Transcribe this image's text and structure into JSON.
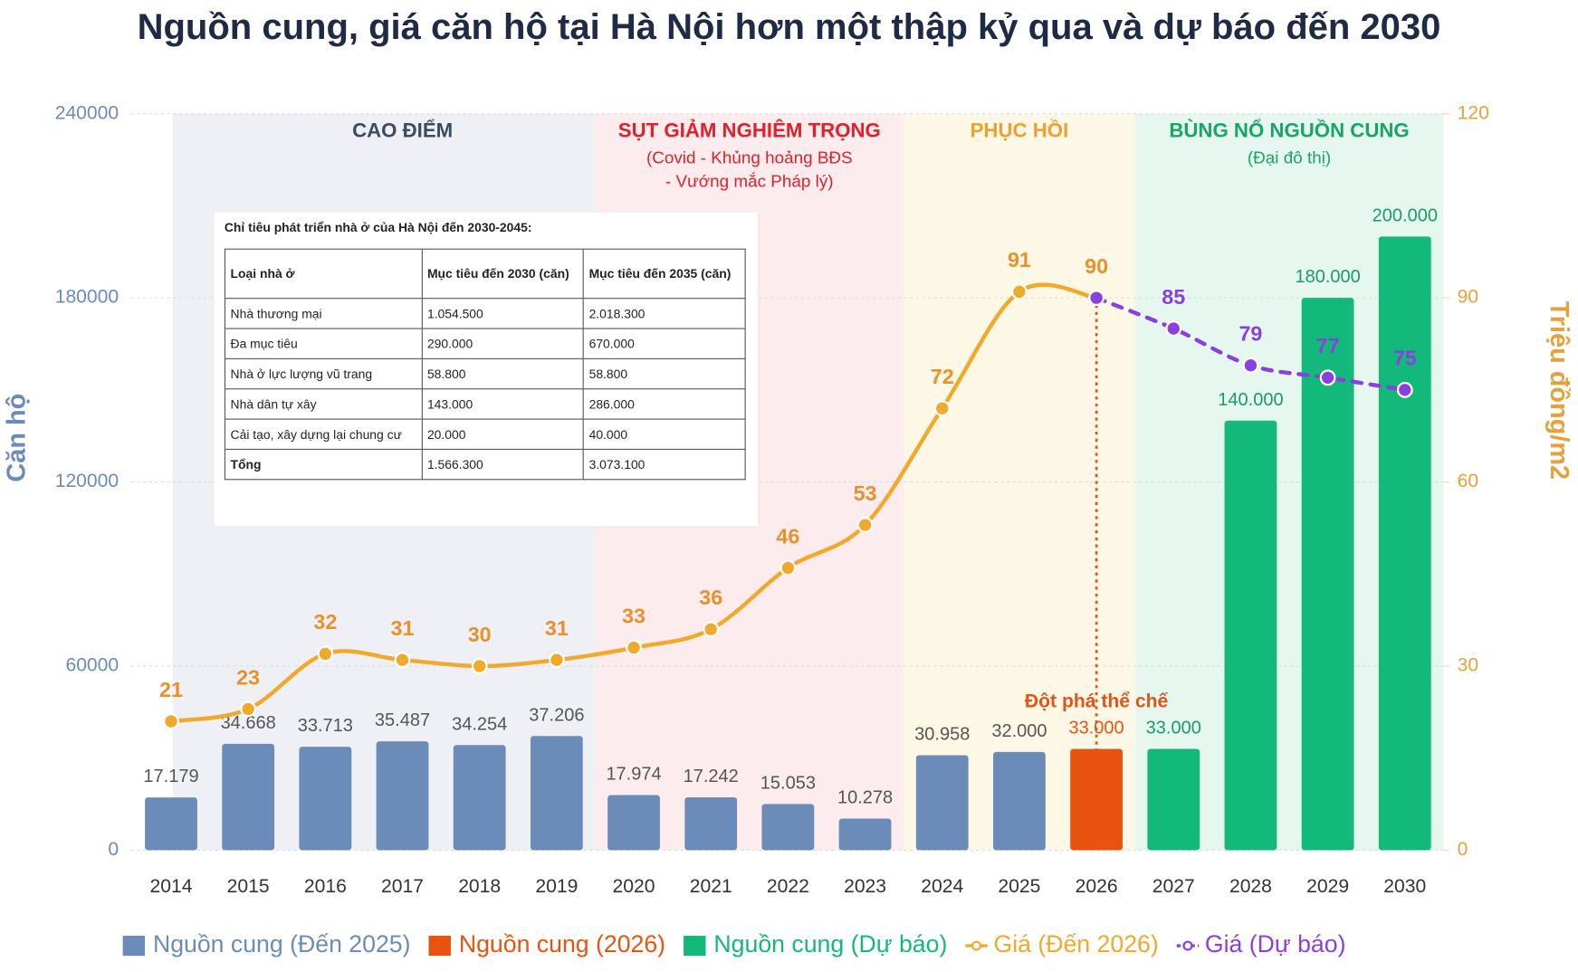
{
  "chart_data": {
    "type": "bar",
    "title": "Nguồn cung, giá căn hộ tại Hà Nội hơn một thập kỷ qua và dự báo đến 2030",
    "y_label": "Căn hộ",
    "y2_label": "Triệu đồng/m2",
    "categories": [
      "2014",
      "2015",
      "2016",
      "2017",
      "2018",
      "2019",
      "2020",
      "2021",
      "2022",
      "2023",
      "2024",
      "2025",
      "2026",
      "2027",
      "2028",
      "2029",
      "2030"
    ],
    "ylim": [
      0,
      240000
    ],
    "yticks": [
      0,
      60000,
      120000,
      180000,
      240000
    ],
    "y2lim": [
      0,
      120
    ],
    "y2ticks": [
      0,
      30,
      60,
      90,
      120
    ],
    "grid": true,
    "legend": "bottom",
    "phases": [
      {
        "title": "CAO ĐIỂM",
        "color": "#3d4a63",
        "background": "#eef0f5"
      },
      {
        "title": "SỤT GIẢM NGHIÊM TRỌNG",
        "note": [
          "(Covid - Khủng hoảng BĐS",
          "- Vướng mắc Pháp lý)"
        ],
        "color": "#e0202a",
        "background": "#fdeced"
      },
      {
        "title": "PHỤC HỒI",
        "color": "#eba032",
        "background": "#fdf8e6"
      },
      {
        "title": "BÙNG NỔ NGUỒN CUNG",
        "note": [
          "(Đại đô thị)"
        ],
        "color": "#1aa468",
        "background": "#e5f7ee"
      }
    ],
    "annotation": "Đột phá thể chế",
    "series": [
      {
        "name": "Nguồn cung (Đến 2025)",
        "type": "bar",
        "color": "#6b8cb8",
        "label_color": "#555555",
        "values": [
          17179,
          34668,
          33713,
          35487,
          34254,
          37206,
          17974,
          17242,
          15053,
          10278,
          30958,
          32000,
          null,
          null,
          null,
          null,
          null
        ],
        "value_labels": [
          "17.179",
          "34.668",
          "33.713",
          "35.487",
          "34.254",
          "37.206",
          "17.974",
          "17.242",
          "15.053",
          "10.278",
          "30.958",
          "32.000",
          null,
          null,
          null,
          null,
          null
        ]
      },
      {
        "name": "Nguồn cung (2026)",
        "type": "bar",
        "color": "#e8540f",
        "label_color": "#e8540f",
        "values": [
          null,
          null,
          null,
          null,
          null,
          null,
          null,
          null,
          null,
          null,
          null,
          null,
          33000,
          null,
          null,
          null,
          null
        ],
        "value_labels": [
          null,
          null,
          null,
          null,
          null,
          null,
          null,
          null,
          null,
          null,
          null,
          null,
          "33.000",
          null,
          null,
          null,
          null
        ]
      },
      {
        "name": "Nguồn cung (Dự báo)",
        "type": "bar",
        "color": "#13b97a",
        "label_color": "#1a9c6a",
        "values": [
          null,
          null,
          null,
          null,
          null,
          null,
          null,
          null,
          null,
          null,
          null,
          null,
          null,
          33000,
          140000,
          180000,
          200000
        ],
        "value_labels": [
          null,
          null,
          null,
          null,
          null,
          null,
          null,
          null,
          null,
          null,
          null,
          null,
          null,
          "33.000",
          "140.000",
          "180.000",
          "200.000"
        ]
      },
      {
        "name": "Giá (Đến 2026)",
        "type": "line",
        "axis": "y2",
        "color": "#f0a92a",
        "label_color": "#e8902a",
        "dashed": false,
        "values": [
          21,
          23,
          32,
          31,
          30,
          31,
          33,
          36,
          46,
          53,
          72,
          91,
          90,
          null,
          null,
          null,
          null
        ]
      },
      {
        "name": "Giá (Dự báo)",
        "type": "line",
        "axis": "y2",
        "color": "#8b3fe0",
        "label_color": "#8b3fe0",
        "dashed": true,
        "values": [
          null,
          null,
          null,
          null,
          null,
          null,
          null,
          null,
          null,
          null,
          null,
          null,
          90,
          85,
          79,
          77,
          75
        ]
      }
    ]
  },
  "table": {
    "title": "Chỉ tiêu phát triển nhà ở của Hà Nội đến 2030-2045:",
    "headers": [
      "Loại nhà ở",
      "Mục tiêu đến 2030 (căn)",
      "Mục tiêu đến 2035 (căn)"
    ],
    "rows": [
      [
        "Nhà thương mại",
        "1.054.500",
        "2.018.300"
      ],
      [
        "Đa mục tiêu",
        "290.000",
        "670.000"
      ],
      [
        "Nhà ở lực lượng vũ trang",
        "58.800",
        "58.800"
      ],
      [
        "Nhà dân tự xây",
        "143.000",
        "286.000"
      ],
      [
        "Cải tạo, xây dựng lại chung cư",
        "20.000",
        "40.000"
      ],
      [
        "Tổng",
        "1.566.300",
        "3.073.100"
      ]
    ]
  }
}
